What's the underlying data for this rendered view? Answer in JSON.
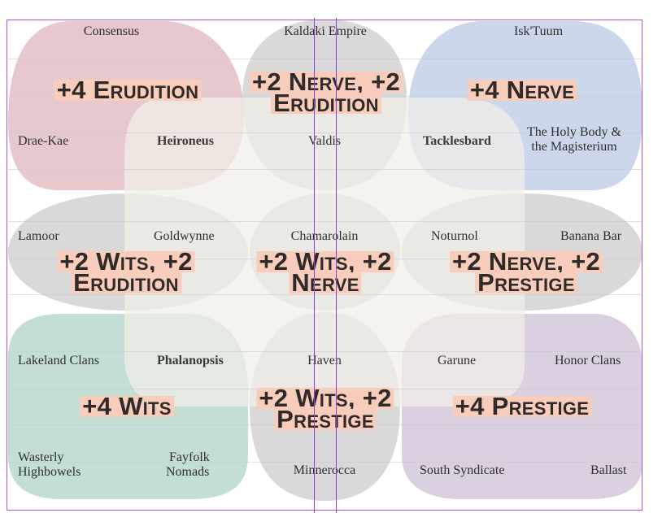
{
  "colors": {
    "erudition": "#e4c2c7",
    "nerve": "#c8d3ea",
    "wits": "#bcdcd0",
    "prestige": "#d8cedd",
    "neutral": "#d5d5d5",
    "overlay": "#f1efe8",
    "stat_highlight": "#f9cdbb",
    "guide_lines": "#8a3fd8"
  },
  "cells": {
    "top_left": {
      "stat": [
        "+4 Erudition"
      ],
      "regions": [
        "Consensus",
        "Drae-Kae",
        "Heironeus"
      ]
    },
    "top_middle": {
      "stat": [
        "+2 Nerve, +2",
        "Erudition"
      ],
      "regions": [
        "Kaldaki Empire",
        "Valdis"
      ]
    },
    "top_right": {
      "stat": [
        "+4 Nerve"
      ],
      "regions": [
        "Isk'Tuum",
        "Tacklesbard",
        "The Holy Body &",
        "the Magisterium"
      ]
    },
    "middle_left": {
      "stat": [
        "+2 Wits, +2",
        "Erudition"
      ],
      "regions": [
        "Lamoor",
        "Goldwynne"
      ]
    },
    "center": {
      "stat": [
        "+2 Wits, +2",
        "Nerve"
      ],
      "regions": [
        "Chamarolain"
      ]
    },
    "middle_right": {
      "stat": [
        "+2 Nerve, +2",
        "Prestige"
      ],
      "regions": [
        "Noturnol",
        "Banana Bar"
      ]
    },
    "bottom_left": {
      "stat": [
        "+4 Wits"
      ],
      "regions": [
        "Lakeland Clans",
        "Phalanopsis",
        "Wasterly",
        "Highbowels",
        "Fayfolk",
        "Nomads"
      ]
    },
    "bottom_middle": {
      "stat": [
        "+2 Wits, +2",
        "Prestige"
      ],
      "regions": [
        "Haven",
        "Minnerocca"
      ]
    },
    "bottom_right": {
      "stat": [
        "+4 Prestige"
      ],
      "regions": [
        "Garune",
        "Honor Clans",
        "South Syndicate",
        "Ballast"
      ]
    }
  }
}
